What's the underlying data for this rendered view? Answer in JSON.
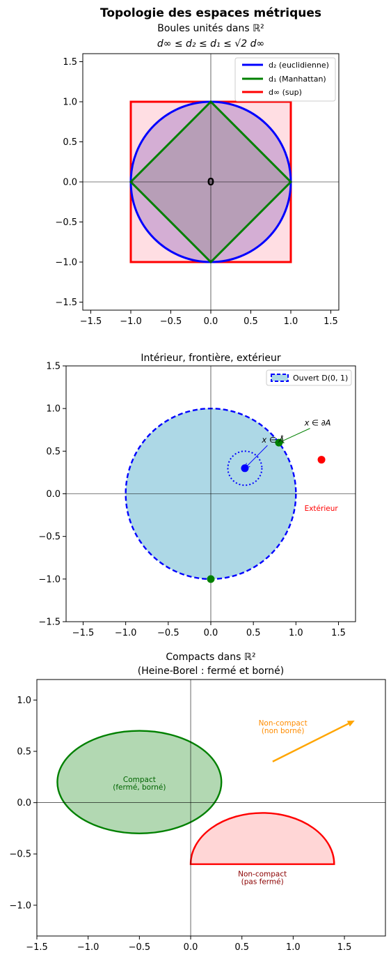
{
  "figure": {
    "suptitle": "Topologie des espaces métriques"
  },
  "chart_data": [
    {
      "type": "line",
      "title": "Boules unités dans ℝ²",
      "subtitle": "d∞ ≤ d₂ ≤ d₁ ≤ √2 d∞",
      "xlim": [
        -1.6,
        1.6
      ],
      "ylim": [
        -1.6,
        1.6
      ],
      "xticks": [
        -1.5,
        -1.0,
        -0.5,
        0.0,
        0.5,
        1.0,
        1.5
      ],
      "yticks": [
        -1.5,
        -1.0,
        -0.5,
        0.0,
        0.5,
        1.0,
        1.5
      ],
      "tick_labels": [
        "−1.5",
        "−1.0",
        "−0.5",
        "0.0",
        "0.5",
        "1.0",
        "1.5"
      ],
      "grid": false,
      "legend_position": "top-right",
      "center_label": "0",
      "series": [
        {
          "name": "d₂ (euclidienne)",
          "shape": "circle",
          "radius": 1.0,
          "color": "#0000ff",
          "fill": "#9467bd"
        },
        {
          "name": "d₁ (Manhattan)",
          "shape": "diamond",
          "vertices": [
            [
              1,
              0
            ],
            [
              0,
              1
            ],
            [
              -1,
              0
            ],
            [
              0,
              -1
            ]
          ],
          "color": "#008000",
          "fill": "#808080"
        },
        {
          "name": "d∞ (sup)",
          "shape": "square",
          "vertices": [
            [
              -1,
              -1
            ],
            [
              1,
              -1
            ],
            [
              1,
              1
            ],
            [
              -1,
              1
            ]
          ],
          "color": "#ff0000",
          "fill": "#ffb6c1"
        }
      ]
    },
    {
      "type": "scatter",
      "title": "Intérieur, frontière, extérieur",
      "xlim": [
        -1.7,
        1.7
      ],
      "ylim": [
        -1.5,
        1.5
      ],
      "xticks": [
        -1.5,
        -1.0,
        -0.5,
        0.0,
        0.5,
        1.0,
        1.5
      ],
      "yticks": [
        -1.5,
        -1.0,
        -0.5,
        0.0,
        0.5,
        1.0,
        1.5
      ],
      "tick_labels": [
        "−1.5",
        "−1.0",
        "−0.5",
        "0.0",
        "0.5",
        "1.0",
        "1.5"
      ],
      "grid": false,
      "legend_position": "top-right",
      "open_disk": {
        "name": "Ouvert D(0, 1)",
        "center": [
          0,
          0
        ],
        "radius": 1.0,
        "color": "#0000ff",
        "fill": "#add8e6"
      },
      "small_disk": {
        "center": [
          0.4,
          0.3
        ],
        "radius": 0.2,
        "color": "#0000ff"
      },
      "points": [
        {
          "x": 0.4,
          "y": 0.3,
          "color": "#0000ff"
        },
        {
          "x": 0.8,
          "y": 0.6,
          "color": "#008000"
        },
        {
          "x": 0.0,
          "y": -1.0,
          "color": "#008000"
        },
        {
          "x": 1.3,
          "y": 0.4,
          "color": "#ff0000"
        }
      ],
      "annotations": [
        {
          "text": "x ∈ Å",
          "x": 0.6,
          "y": 0.6,
          "target": [
            0.4,
            0.3
          ],
          "color": "#0000ff"
        },
        {
          "text": "x ∈ ∂A",
          "x": 1.1,
          "y": 0.8,
          "target": [
            0.8,
            0.6
          ],
          "color": "#008000"
        },
        {
          "text": "Extérieur",
          "x": 1.1,
          "y": -0.2,
          "color": "#ff0000"
        }
      ]
    },
    {
      "type": "area",
      "title": "Compacts dans ℝ²",
      "subtitle": "(Heine-Borel : fermé et borné)",
      "xlim": [
        -1.5,
        1.9
      ],
      "ylim": [
        -1.3,
        1.2
      ],
      "xticks": [
        -1.5,
        -1.0,
        -0.5,
        0.0,
        0.5,
        1.0,
        1.5
      ],
      "yticks": [
        -1.0,
        -0.5,
        0.0,
        0.5,
        1.0
      ],
      "xtick_labels": [
        "−1.5",
        "−1.0",
        "−0.5",
        "0.0",
        "0.5",
        "1.0",
        "1.5"
      ],
      "ytick_labels": [
        "−1.0",
        "−0.5",
        "0.0",
        "0.5",
        "1.0"
      ],
      "grid": false,
      "shapes": [
        {
          "kind": "ellipse",
          "center": [
            -0.5,
            0.2
          ],
          "rx": 0.8,
          "ry": 0.5,
          "color": "#008000",
          "fill": "#b2d8b2",
          "label": [
            "Compact",
            "(fermé, borné)"
          ],
          "label_pos": [
            -0.5,
            0.2
          ]
        },
        {
          "kind": "half-disk",
          "center": [
            0.7,
            -0.6
          ],
          "r": 0.7,
          "ry": 0.5,
          "color": "#ff0000",
          "fill": "#ffd6d6",
          "label": [
            "Non-compact",
            "(pas fermé)"
          ],
          "label_pos": [
            0.7,
            -0.72
          ]
        },
        {
          "kind": "arrow",
          "from": [
            0.8,
            0.4
          ],
          "to": [
            1.6,
            0.8
          ],
          "color": "#ffa500",
          "label": [
            "Non-compact",
            "(non borné)"
          ],
          "label_pos": [
            0.9,
            0.75
          ]
        }
      ]
    }
  ]
}
